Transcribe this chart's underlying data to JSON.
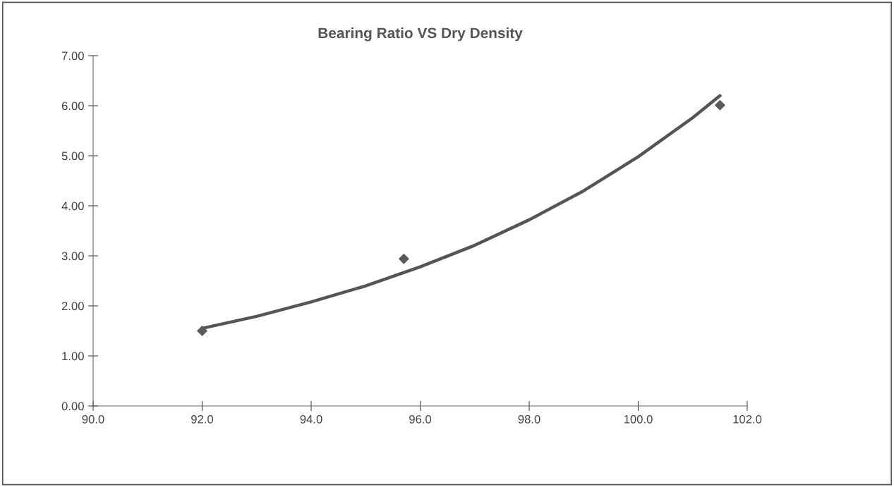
{
  "chart_data": {
    "type": "scatter",
    "title": "Bearing Ratio VS Dry Density",
    "series": [
      {
        "color": "#5a5a5a",
        "marker": "diamond",
        "x": [
          92.0,
          95.7,
          101.5
        ],
        "values": [
          1.5,
          2.94,
          6.01
        ]
      },
      {
        "type": "line",
        "color": "#555555",
        "marker": "none",
        "x": [
          92,
          93,
          94,
          95,
          96,
          97,
          98,
          99,
          100,
          101,
          101.5
        ],
        "values": [
          1.55,
          1.79,
          2.08,
          2.4,
          2.78,
          3.21,
          3.72,
          4.3,
          4.98,
          5.76,
          6.2
        ]
      }
    ],
    "xlim": [
      90,
      102
    ],
    "xticks": [
      {
        "value": 90,
        "label": "90.0"
      },
      {
        "value": 92,
        "label": "92.0"
      },
      {
        "value": 94,
        "label": "94.0"
      },
      {
        "value": 96,
        "label": "96.0"
      },
      {
        "value": 98,
        "label": "98.0"
      },
      {
        "value": 100,
        "label": "100.0"
      },
      {
        "value": 102,
        "label": "102.0"
      }
    ],
    "ylim": [
      0,
      7
    ],
    "yticks": [
      {
        "value": 0,
        "label": "0.00"
      },
      {
        "value": 1,
        "label": "1.00"
      },
      {
        "value": 2,
        "label": "2.00"
      },
      {
        "value": 3,
        "label": "3.00"
      },
      {
        "value": 4,
        "label": "4.00"
      },
      {
        "value": 5,
        "label": "5.00"
      },
      {
        "value": 6,
        "label": "6.00"
      },
      {
        "value": 7,
        "label": "7.00"
      }
    ],
    "grid": false,
    "legend": false
  }
}
